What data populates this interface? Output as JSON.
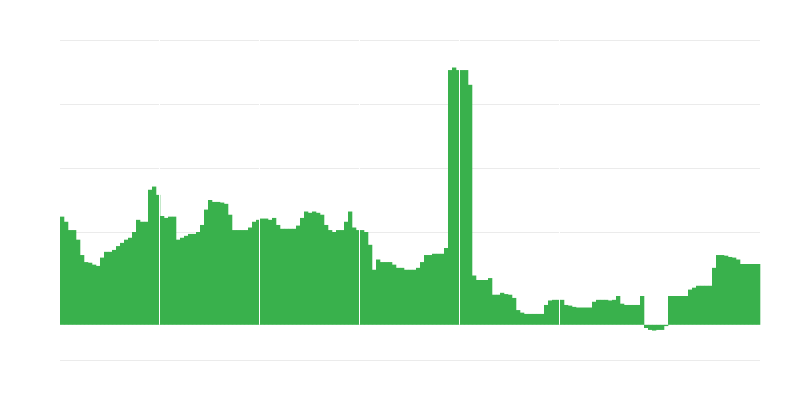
{
  "chart_data": {
    "type": "bar",
    "title": "",
    "xlabel": "",
    "ylabel": "",
    "ylim": [
      -5.5,
      44.5
    ],
    "gridlines": [
      -5.5,
      14.5,
      24.5,
      34.5,
      44.5
    ],
    "grid": true,
    "legend": "none",
    "bar_color": "#39b14c",
    "grid_color": "#ebebeb",
    "separator_count": 5,
    "values": [
      16.9,
      16.1,
      14.8,
      14.8,
      13.3,
      10.9,
      9.8,
      9.7,
      9.4,
      9.2,
      10.5,
      11.4,
      11.4,
      11.7,
      12.3,
      12.8,
      13.3,
      13.6,
      14.5,
      16.4,
      16.1,
      16.1,
      21.1,
      21.6,
      20.3,
      17.0,
      16.7,
      16.9,
      16.9,
      13.3,
      13.6,
      13.9,
      14.2,
      14.2,
      14.5,
      15.6,
      18.0,
      19.5,
      19.2,
      19.2,
      19.1,
      18.9,
      17.2,
      14.8,
      14.8,
      14.8,
      14.8,
      15.2,
      16.1,
      16.4,
      16.6,
      16.6,
      16.4,
      16.7,
      15.6,
      15.0,
      15.0,
      15.0,
      15.0,
      15.5,
      16.7,
      17.7,
      17.5,
      17.7,
      17.5,
      17.2,
      15.6,
      14.8,
      14.5,
      14.8,
      14.8,
      16.1,
      17.7,
      15.2,
      14.8,
      14.8,
      14.5,
      12.5,
      8.6,
      10.2,
      9.8,
      9.8,
      9.8,
      9.4,
      8.9,
      8.9,
      8.6,
      8.6,
      8.6,
      8.9,
      9.8,
      10.9,
      10.9,
      11.1,
      11.1,
      11.1,
      12.0,
      39.8,
      40.2,
      39.8,
      39.8,
      39.8,
      37.5,
      7.7,
      7.0,
      7.0,
      7.0,
      7.3,
      4.7,
      4.7,
      5.0,
      4.8,
      4.7,
      4.2,
      2.3,
      1.9,
      1.7,
      1.7,
      1.7,
      1.7,
      1.7,
      3.1,
      3.8,
      3.9,
      3.9,
      3.9,
      3.1,
      3.0,
      2.8,
      2.7,
      2.7,
      2.7,
      2.7,
      3.6,
      3.9,
      3.9,
      3.9,
      3.8,
      3.9,
      4.5,
      3.3,
      3.1,
      3.1,
      3.1,
      3.1,
      4.5,
      -0.5,
      -0.8,
      -0.9,
      -0.8,
      -0.8,
      -0.2,
      4.5,
      4.5,
      4.5,
      4.5,
      4.5,
      5.5,
      5.8,
      6.1,
      6.1,
      6.1,
      6.1,
      8.9,
      10.9,
      10.9,
      10.8,
      10.6,
      10.5,
      10.2,
      9.5,
      9.5,
      9.5,
      9.5,
      9.5
    ]
  }
}
